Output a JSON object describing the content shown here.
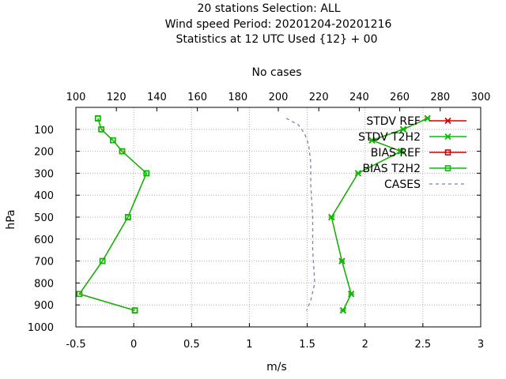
{
  "title_lines": [
    "20 stations Selection: ALL",
    "Wind speed  Period: 20201204-20201216",
    "Statistics at 12 UTC  Used {12} + 00"
  ],
  "chart_data": {
    "type": "line",
    "xlabel": "m/s",
    "ylabel": "hPa",
    "x2label": "No cases",
    "xlim": [
      -0.5,
      3
    ],
    "ylim": [
      1000,
      0
    ],
    "x2lim": [
      100,
      300
    ],
    "x_ticks": [
      -0.5,
      0,
      0.5,
      1,
      1.5,
      2,
      2.5,
      3
    ],
    "x_tick_labels": [
      "-0.5",
      "0",
      "0.5",
      "1",
      "1.5",
      "2",
      "2.5",
      "3"
    ],
    "y_ticks": [
      100,
      200,
      300,
      400,
      500,
      600,
      700,
      800,
      900,
      1000
    ],
    "y_tick_labels": [
      "100",
      "200",
      "300",
      "400",
      "500",
      "600",
      "700",
      "800",
      "900",
      "1000"
    ],
    "x2_ticks": [
      100,
      120,
      140,
      160,
      180,
      200,
      220,
      240,
      260,
      280,
      300
    ],
    "x2_tick_labels": [
      "100",
      "120",
      "140",
      "160",
      "180",
      "200",
      "220",
      "240",
      "260",
      "280",
      "300"
    ],
    "grid": true,
    "legend_position": "top-right",
    "series": [
      {
        "name": "STDV REF",
        "color": "#d40000",
        "marker": "x",
        "axis": "bottom",
        "points": [
          [
            2.54,
            50
          ],
          [
            2.33,
            100
          ],
          [
            2.06,
            150
          ],
          [
            2.31,
            200
          ],
          [
            1.94,
            300
          ],
          [
            1.71,
            500
          ],
          [
            1.8,
            700
          ],
          [
            1.88,
            850
          ],
          [
            1.81,
            925
          ]
        ]
      },
      {
        "name": "STDV T2H2",
        "color": "#00c000",
        "marker": "x",
        "axis": "bottom",
        "points": [
          [
            2.54,
            50
          ],
          [
            2.33,
            100
          ],
          [
            2.06,
            150
          ],
          [
            2.31,
            200
          ],
          [
            1.94,
            300
          ],
          [
            1.71,
            500
          ],
          [
            1.8,
            700
          ],
          [
            1.88,
            850
          ],
          [
            1.81,
            925
          ]
        ]
      },
      {
        "name": "BIAS REF",
        "color": "#d40000",
        "marker": "square",
        "axis": "bottom",
        "points": [
          [
            -0.31,
            50
          ],
          [
            -0.28,
            100
          ],
          [
            -0.18,
            150
          ],
          [
            -0.1,
            200
          ],
          [
            0.11,
            300
          ],
          [
            -0.05,
            500
          ],
          [
            -0.27,
            700
          ],
          [
            -0.47,
            850
          ],
          [
            0.01,
            925
          ]
        ]
      },
      {
        "name": "BIAS T2H2",
        "color": "#00c000",
        "marker": "square",
        "axis": "bottom",
        "points": [
          [
            -0.31,
            50
          ],
          [
            -0.28,
            100
          ],
          [
            -0.18,
            150
          ],
          [
            -0.1,
            200
          ],
          [
            0.11,
            300
          ],
          [
            -0.05,
            500
          ],
          [
            -0.27,
            700
          ],
          [
            -0.47,
            850
          ],
          [
            0.01,
            925
          ]
        ]
      },
      {
        "name": "CASES",
        "color": "#8080a0",
        "marker": "none",
        "axis": "top",
        "dashed": true,
        "points": [
          [
            204,
            50
          ],
          [
            210,
            80
          ],
          [
            213,
            120
          ],
          [
            215,
            170
          ],
          [
            216,
            250
          ],
          [
            216,
            350
          ],
          [
            217,
            500
          ],
          [
            217,
            650
          ],
          [
            218,
            800
          ],
          [
            216,
            880
          ],
          [
            214,
            925
          ]
        ]
      }
    ]
  }
}
